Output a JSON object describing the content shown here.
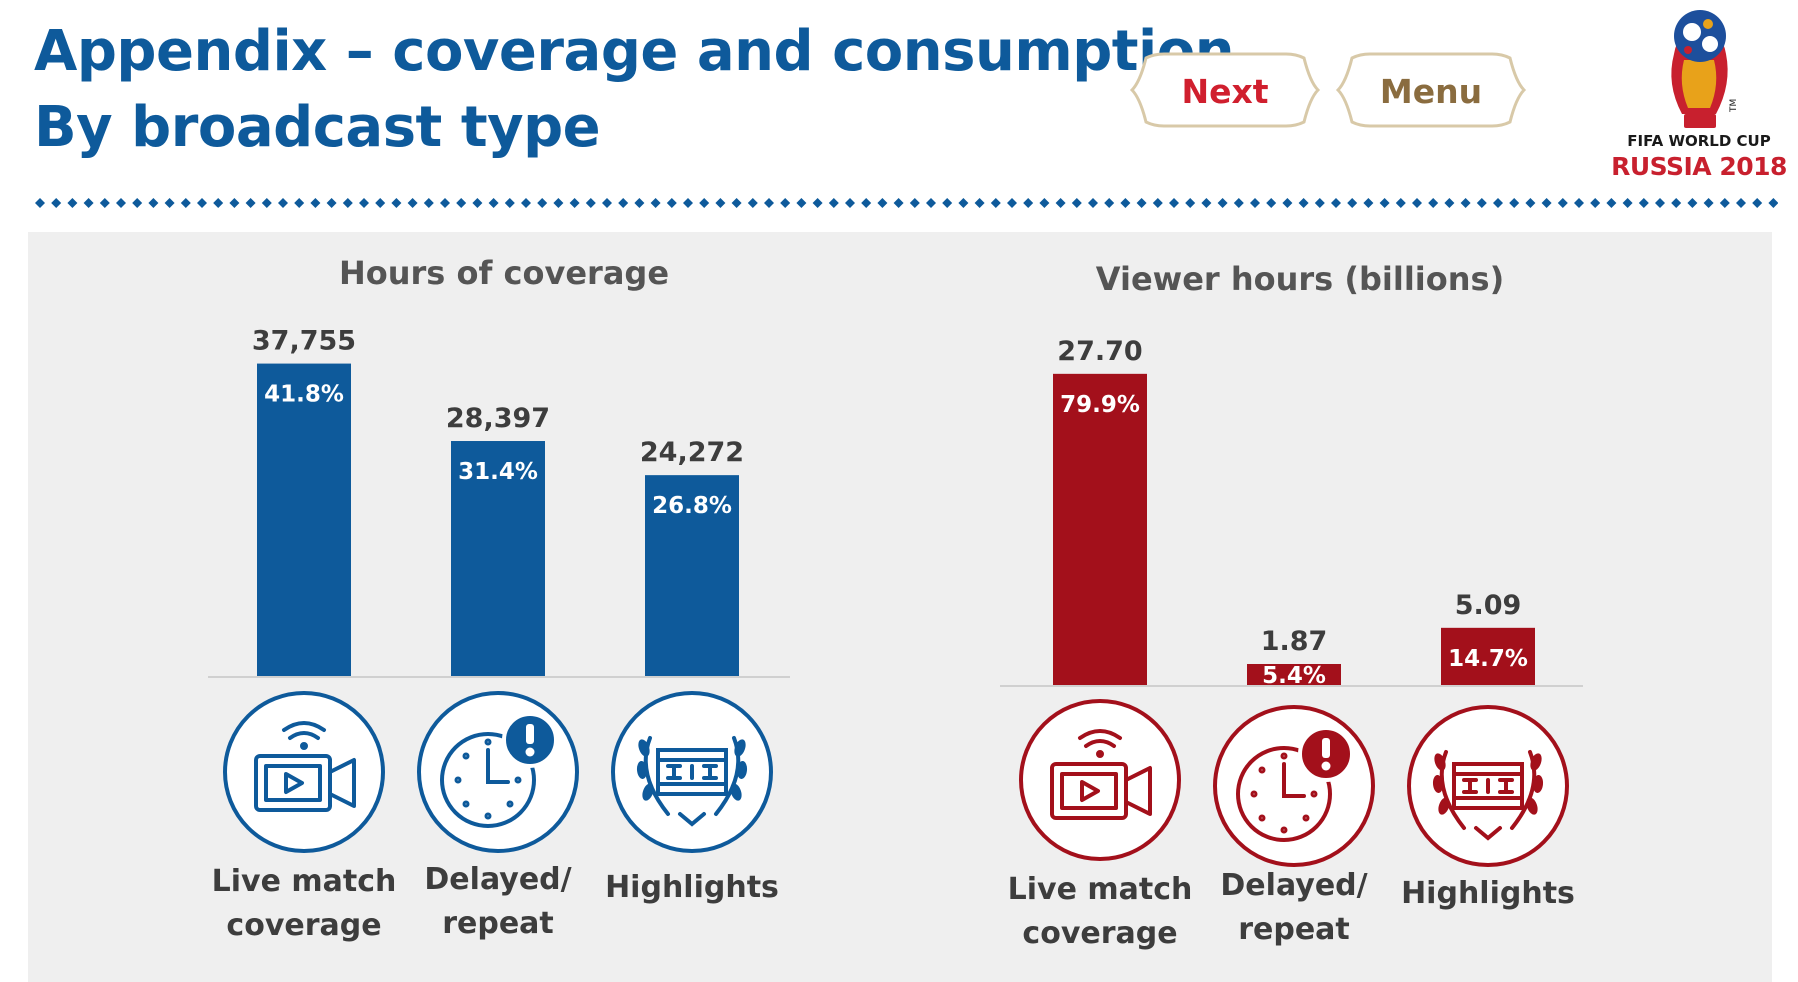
{
  "header": {
    "title_line1": "Appendix – coverage and consumption",
    "title_line2": "By broadcast type",
    "next_label": "Next",
    "menu_label": "Menu",
    "logo_line1": "FIFA WORLD CUP",
    "logo_line2": "RUSSIA 2018",
    "logo_tm": "TM"
  },
  "categories": [
    {
      "line1": "Live match",
      "line2": "coverage"
    },
    {
      "line1": "Delayed/",
      "line2": "repeat"
    },
    {
      "line1": "Highlights",
      "line2": ""
    }
  ],
  "colors": {
    "title": "#0e5a9b",
    "coverage_bar": "#0e5a9b",
    "viewer_bar": "#a3101b",
    "next_text": "#d01f2e",
    "menu_text": "#8a6c3f",
    "panel_bg": "#efefef"
  },
  "icons": [
    "video-camera-icon",
    "clock-alert-icon",
    "film-laurel-icon"
  ],
  "chart_data": [
    {
      "type": "bar",
      "title": "Hours of coverage",
      "categories": [
        "Live match coverage",
        "Delayed/ repeat",
        "Highlights"
      ],
      "values": [
        37755,
        28397,
        24272
      ],
      "value_labels": [
        "37,755",
        "28,397",
        "24,272"
      ],
      "share_labels": [
        "41.8%",
        "31.4%",
        "26.8%"
      ],
      "ylim": [
        0,
        40000
      ],
      "grid": false
    },
    {
      "type": "bar",
      "title": "Viewer hours (billions)",
      "categories": [
        "Live match coverage",
        "Delayed/ repeat",
        "Highlights"
      ],
      "values": [
        27.7,
        1.87,
        5.09
      ],
      "value_labels": [
        "27.70",
        "1.87",
        "5.09"
      ],
      "share_labels": [
        "79.9%",
        "5.4%",
        "14.7%"
      ],
      "ylim": [
        0,
        30
      ],
      "grid": false
    }
  ]
}
